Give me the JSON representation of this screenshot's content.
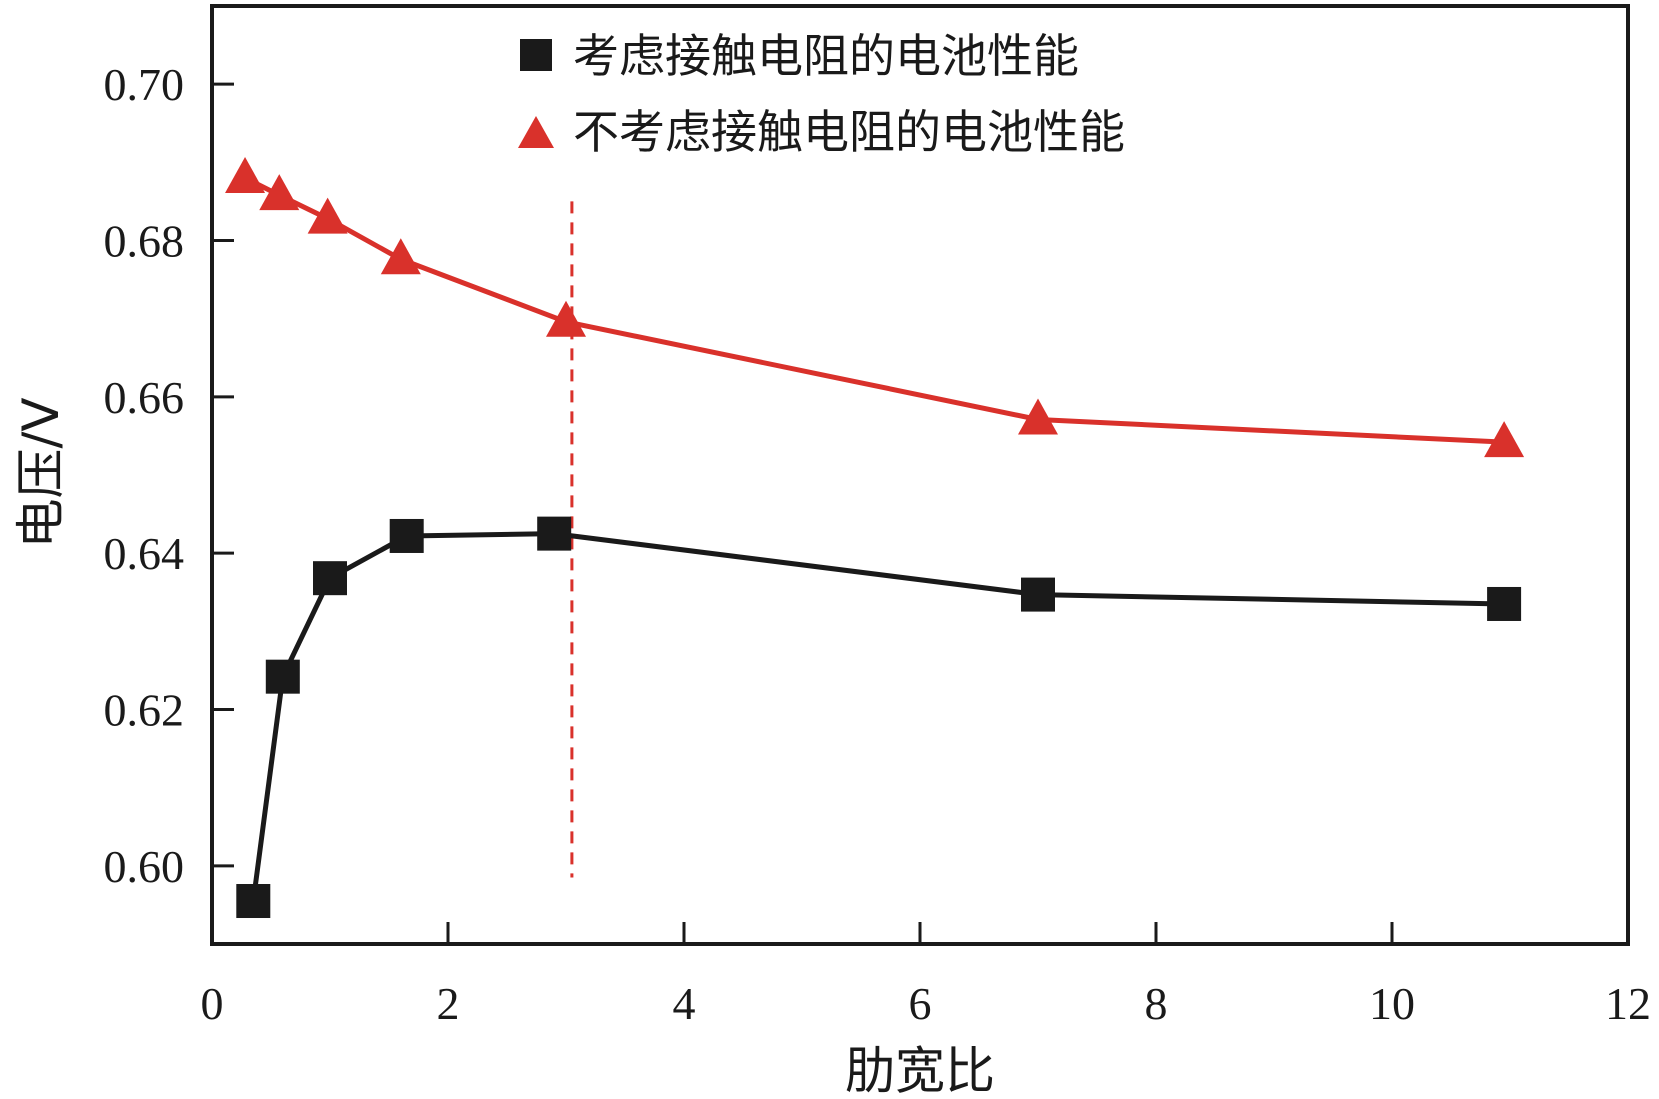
{
  "chart_data": {
    "type": "line",
    "title": "",
    "xlabel": "肋宽比",
    "ylabel": "电压/V",
    "xlim": [
      0,
      12
    ],
    "ylim": [
      0.59,
      0.71
    ],
    "xticks": [
      0,
      2,
      4,
      6,
      8,
      10,
      12
    ],
    "xtick_labels": [
      "0",
      "2",
      "4",
      "6",
      "8",
      "10",
      "12"
    ],
    "yticks": [
      0.6,
      0.62,
      0.64,
      0.66,
      0.68,
      0.7
    ],
    "ytick_labels": [
      "0.60",
      "0.62",
      "0.64",
      "0.66",
      "0.68",
      "0.70"
    ],
    "grid": false,
    "legend_position": "top-right",
    "series": [
      {
        "name": "考虑接触电阻的电池性能",
        "marker": "square",
        "color": "#1a1a1a",
        "x": [
          0.35,
          0.6,
          1.0,
          1.65,
          2.9,
          7.0,
          10.95
        ],
        "y": [
          0.5955,
          0.6242,
          0.6368,
          0.6422,
          0.6425,
          0.6347,
          0.6335
        ]
      },
      {
        "name": "不考虑接触电阻的电池性能",
        "marker": "triangle",
        "color": "#d9312b",
        "x": [
          0.28,
          0.57,
          0.98,
          1.6,
          3.0,
          7.0,
          10.95
        ],
        "y": [
          0.688,
          0.6858,
          0.6828,
          0.6776,
          0.6696,
          0.6571,
          0.6542
        ]
      }
    ],
    "annotations": [
      {
        "type": "vertical-dashed-line",
        "x": 3.05,
        "y_range": [
          0.5985,
          0.685
        ],
        "color": "#d9312b"
      }
    ]
  }
}
